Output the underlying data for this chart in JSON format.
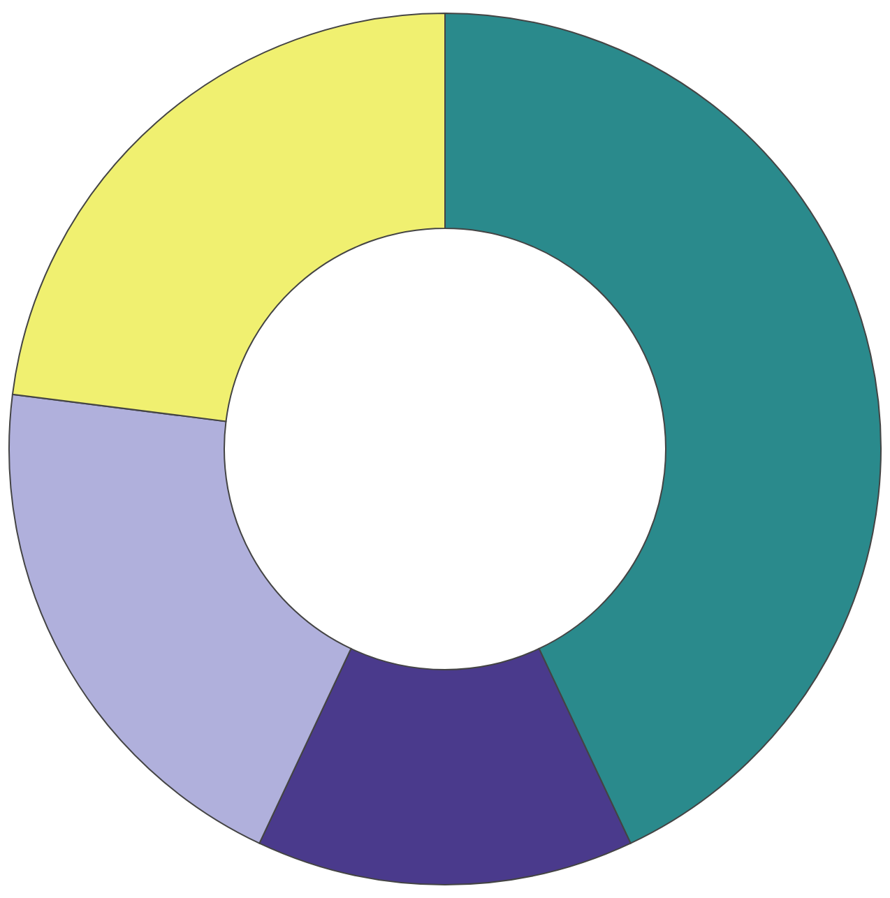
{
  "chart_data": {
    "type": "donut",
    "categories": [
      null,
      null,
      null,
      null
    ],
    "values": [
      43,
      14,
      20,
      23
    ],
    "colors": [
      "#2a8a8c",
      "#4a3a8c",
      "#b0b0dc",
      "#f0f070"
    ],
    "legend": false
  }
}
